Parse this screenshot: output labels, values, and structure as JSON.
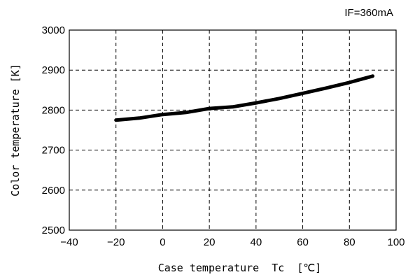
{
  "chart_data": {
    "type": "line",
    "annotation": "IF=360mA",
    "xlabel": "Case temperature  Tc  [℃]",
    "ylabel": "Color temperature [K]",
    "xlim": [
      -40,
      100
    ],
    "ylim": [
      2500,
      3000
    ],
    "xticks": [
      -40,
      -20,
      0,
      20,
      40,
      60,
      80,
      100
    ],
    "yticks": [
      2500,
      2600,
      2700,
      2800,
      2900,
      3000
    ],
    "grid": true,
    "series": [
      {
        "color": "#000000",
        "x": [
          -20,
          -10,
          0,
          10,
          20,
          30,
          40,
          50,
          60,
          70,
          80,
          90
        ],
        "y": [
          2775,
          2780,
          2789,
          2794,
          2804,
          2808,
          2818,
          2829,
          2842,
          2855,
          2869,
          2885
        ]
      }
    ]
  }
}
